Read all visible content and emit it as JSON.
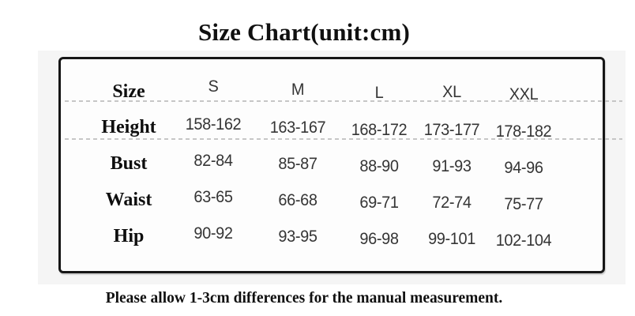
{
  "chart_data": {
    "type": "table",
    "title": "Size Chart(unit:cm)",
    "columns": [
      "Size",
      "S",
      "M",
      "L",
      "XL",
      "XXL"
    ],
    "rows": [
      [
        "Height",
        "158-162",
        "163-167",
        "168-172",
        "173-177",
        "178-182"
      ],
      [
        "Bust",
        "82-84",
        "85-87",
        "88-90",
        "91-93",
        "94-96"
      ],
      [
        "Waist",
        "63-65",
        "66-68",
        "69-71",
        "72-74",
        "75-77"
      ],
      [
        "Hip",
        "90-92",
        "93-95",
        "96-98",
        "99-101",
        "102-104"
      ]
    ],
    "note": "Please allow 1-3cm differences for the manual measurement.",
    "unit": "cm"
  },
  "colors": {
    "title_text": "#101010",
    "label_text": "#0e0e0e",
    "value_text": "#353535",
    "table_border": "#161616",
    "separator": "#bdbdbd",
    "backdrop": "#f5f5f5",
    "table_fill": "#fdfdfd"
  }
}
